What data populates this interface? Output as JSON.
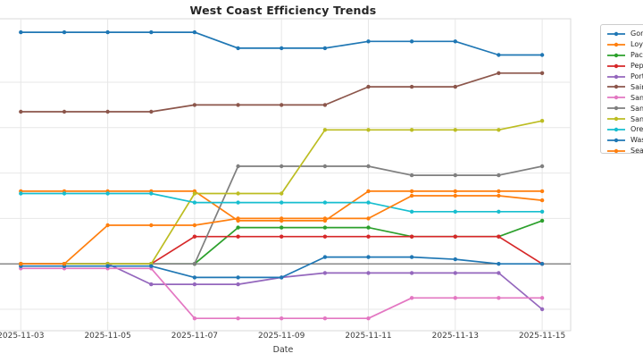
{
  "chart_data": {
    "type": "line",
    "title": "West Coast Efficiency Trends",
    "xlabel": "Date",
    "x": [
      "2025-11-03",
      "2025-11-04",
      "2025-11-05",
      "2025-11-06",
      "2025-11-07",
      "2025-11-08",
      "2025-11-09",
      "2025-11-10",
      "2025-11-11",
      "2025-11-12",
      "2025-11-13",
      "2025-11-14",
      "2025-11-15"
    ],
    "x_tick_labels": [
      "2025-11-03",
      "2025-11-05",
      "2025-11-07",
      "2025-11-09",
      "2025-11-11",
      "2025-11-13",
      "2025-11-15"
    ],
    "y_axis_note": "y-axis tick labels are cropped off the left edge of the image; values are estimated in gridline units where 0 = the dark horizontal reference line",
    "ylim": [
      -1.47,
      5.4
    ],
    "y_gridlines": [
      -1,
      0,
      1,
      2,
      3,
      4
    ],
    "zero_line_value": 0,
    "grid": true,
    "legend_position": "upper-right, outside plot, clipped by image edge",
    "series": [
      {
        "label": "Gonza",
        "color": "#1f77b4",
        "values": [
          5.1,
          5.1,
          5.1,
          5.1,
          5.1,
          4.75,
          4.75,
          4.75,
          4.9,
          4.9,
          4.9,
          4.6,
          4.6
        ]
      },
      {
        "label": "Loyo",
        "color": "#ff7f0e",
        "values": [
          1.6,
          1.6,
          1.6,
          1.6,
          1.6,
          0.95,
          0.95,
          0.95,
          1.6,
          1.6,
          1.6,
          1.6,
          1.6
        ]
      },
      {
        "label": "Pacif",
        "color": "#2ca02c",
        "values": [
          0,
          0,
          0,
          0,
          0,
          0.8,
          0.8,
          0.8,
          0.8,
          0.6,
          0.6,
          0.6,
          0.95
        ]
      },
      {
        "label": "Pepp",
        "color": "#d62728",
        "values": [
          0,
          0,
          0,
          0,
          0.6,
          0.6,
          0.6,
          0.6,
          0.6,
          0.6,
          0.6,
          0.6,
          0
        ]
      },
      {
        "label": "Portl",
        "color": "#9467bd",
        "values": [
          0,
          0,
          0,
          -0.45,
          -0.45,
          -0.45,
          -0.3,
          -0.2,
          -0.2,
          -0.2,
          -0.2,
          -0.2,
          -1.0
        ]
      },
      {
        "label": "Saint",
        "color": "#8c564b",
        "values": [
          3.35,
          3.35,
          3.35,
          3.35,
          3.5,
          3.5,
          3.5,
          3.5,
          3.9,
          3.9,
          3.9,
          4.2,
          4.2
        ]
      },
      {
        "label": "San",
        "color": "#e377c2",
        "values": [
          -0.1,
          -0.1,
          -0.1,
          -0.1,
          -1.2,
          -1.2,
          -1.2,
          -1.2,
          -1.2,
          -0.75,
          -0.75,
          -0.75,
          -0.75
        ]
      },
      {
        "label": "San",
        "color": "#7f7f7f",
        "values": [
          0,
          0,
          0,
          0,
          0,
          2.15,
          2.15,
          2.15,
          2.15,
          1.95,
          1.95,
          1.95,
          2.15
        ]
      },
      {
        "label": "Sant",
        "color": "#bcbd22",
        "values": [
          0,
          0,
          0,
          0,
          1.55,
          1.55,
          1.55,
          2.95,
          2.95,
          2.95,
          2.95,
          2.95,
          3.15
        ]
      },
      {
        "label": "Oreg",
        "color": "#17becf",
        "values": [
          1.55,
          1.55,
          1.55,
          1.55,
          1.35,
          1.35,
          1.35,
          1.35,
          1.35,
          1.15,
          1.15,
          1.15,
          1.15
        ]
      },
      {
        "label": "Wash",
        "color": "#1f77b4",
        "values": [
          -0.05,
          -0.05,
          -0.05,
          -0.05,
          -0.3,
          -0.3,
          -0.3,
          0.15,
          0.15,
          0.15,
          0.1,
          0,
          0
        ]
      },
      {
        "label": "Seat",
        "color": "#ff7f0e",
        "values": [
          0,
          0,
          0.85,
          0.85,
          0.85,
          1.0,
          1.0,
          1.0,
          1.0,
          1.5,
          1.5,
          1.5,
          1.4
        ]
      }
    ],
    "colors": {
      "grid": "#e7e7e7",
      "frame": "#d9d9d9",
      "zero_line": "#666666",
      "title_text": "#262626",
      "tick_text": "#3a3a3a"
    }
  }
}
